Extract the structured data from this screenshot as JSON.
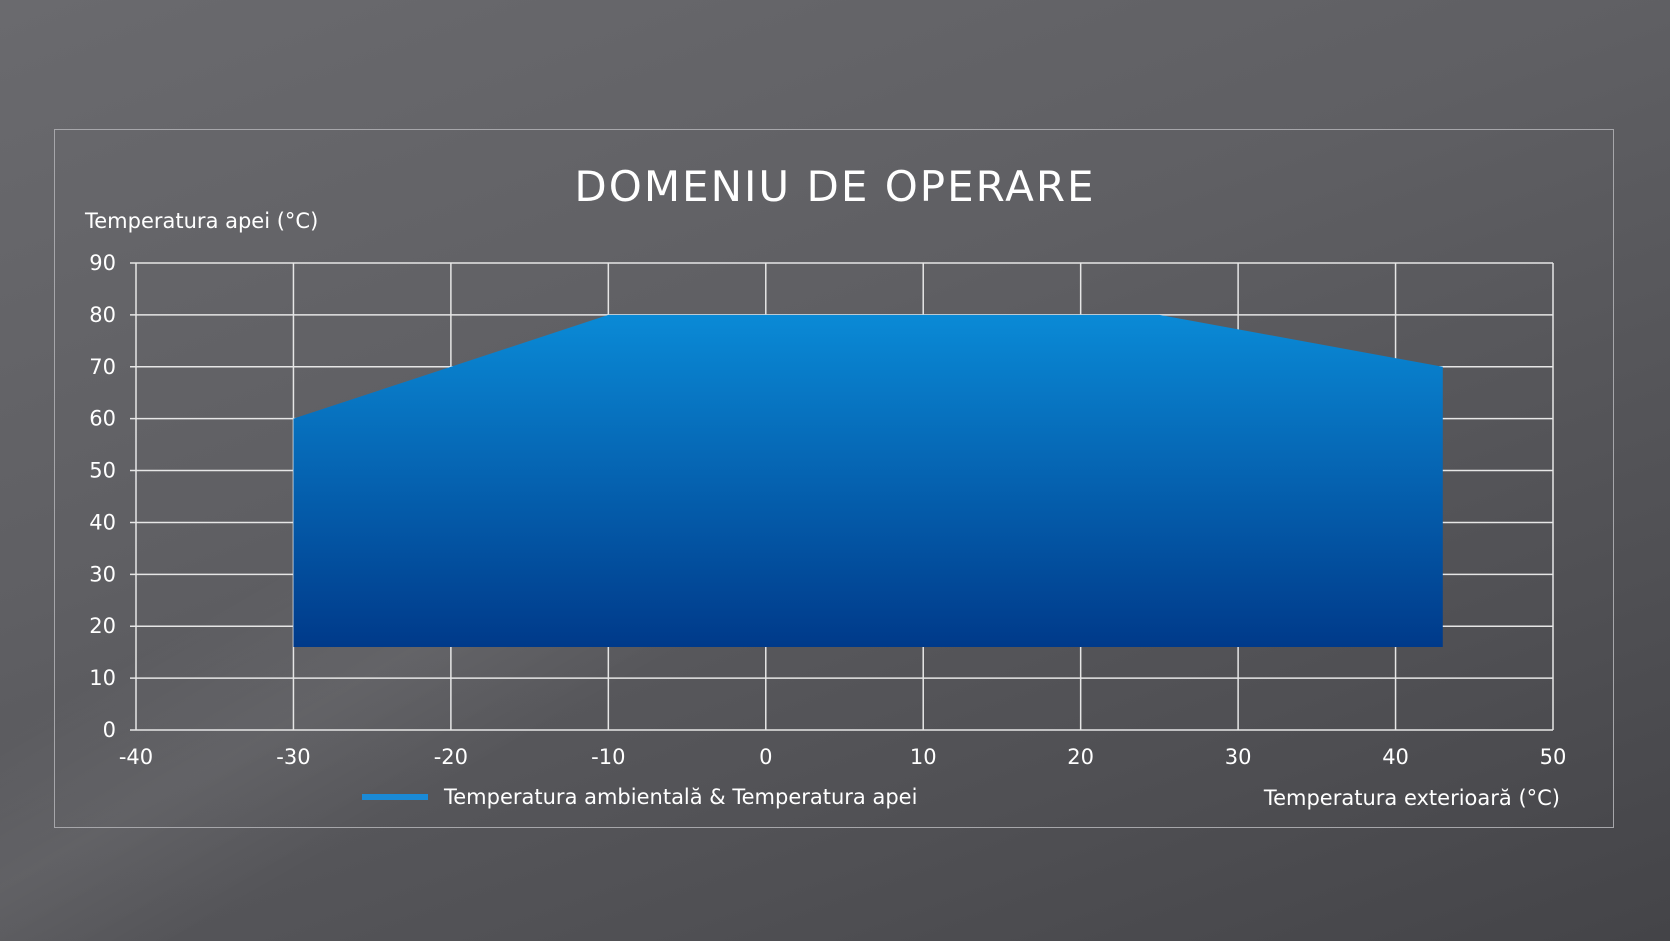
{
  "chart_data": {
    "type": "area",
    "title": "DOMENIU DE OPERARE",
    "xlabel": "Temperatura exterioară (°C)",
    "ylabel": "Temperatura apei (°C)",
    "xlim": [
      -40,
      50
    ],
    "ylim": [
      0,
      90
    ],
    "xticks": [
      -40,
      -30,
      -20,
      -10,
      0,
      10,
      20,
      30,
      40,
      50
    ],
    "yticks": [
      0,
      10,
      20,
      30,
      40,
      50,
      60,
      70,
      80,
      90
    ],
    "grid": true,
    "legend_placement": "bottom-left",
    "series": [
      {
        "name": "Temperatura ambientală & Temperatura apei",
        "color": "#1a8ad6",
        "gradient": [
          "#0a8ad6",
          "#003a8a"
        ],
        "polygon": [
          [
            -30,
            16
          ],
          [
            -30,
            60
          ],
          [
            -10,
            80
          ],
          [
            25,
            80
          ],
          [
            43,
            70
          ],
          [
            43,
            16
          ]
        ]
      }
    ]
  },
  "colors": {
    "background": "#5f5f63",
    "grid": "#e6e6e6",
    "frame": "#a6a6aa"
  }
}
